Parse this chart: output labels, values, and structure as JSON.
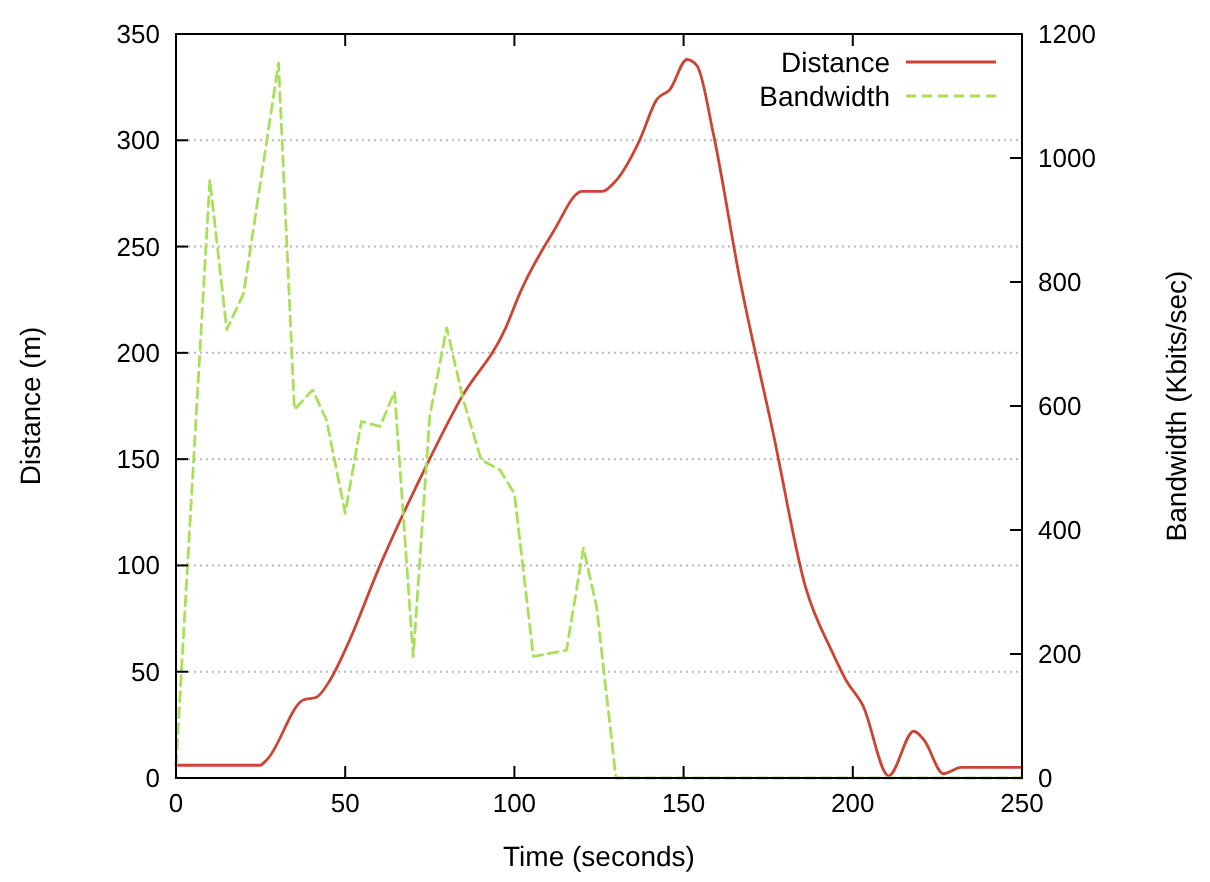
{
  "chart_data": {
    "type": "line",
    "xlabel": "Time (seconds)",
    "ylabel": "Distance (m)",
    "y2label": "Bandwidth (Kbits/sec)",
    "xlim": [
      0,
      250
    ],
    "xticks": [
      0,
      50,
      100,
      150,
      200,
      250
    ],
    "ylim": [
      0,
      350
    ],
    "yticks": [
      0,
      50,
      100,
      150,
      200,
      250,
      300,
      350
    ],
    "y2lim": [
      0,
      1200
    ],
    "y2ticks": [
      0,
      200,
      400,
      600,
      800,
      1000,
      1200
    ],
    "grid": "y",
    "legend": "top right",
    "series": [
      {
        "name": "Distance",
        "color": "#cc4433",
        "line_style": "solid",
        "x": [
          0,
          24.8,
          26.8,
          37.6,
          41.5,
          45.5,
          50.5,
          60.3,
          74,
          84,
          97.5,
          101.6,
          111.5,
          120,
          126,
          130,
          137,
          142,
          146,
          151,
          154,
          158.8,
          166.7,
          176.5,
          186,
          194,
          198,
          203,
          210.6,
          218,
          221,
          226.8,
          232,
          250
        ],
        "values": [
          6,
          6,
          8.5,
          36.7,
          38,
          46,
          62,
          100,
          147,
          178,
          212,
          228,
          257,
          276,
          276,
          281,
          300,
          319,
          324,
          338,
          335,
          303,
          234,
          162,
          90,
          59,
          46,
          34,
          1,
          22,
          18,
          2,
          5,
          5
        ]
      },
      {
        "name": "Bandwidth",
        "color": "#a8e05a",
        "line_style": "dashed",
        "axis": "y2",
        "x": [
          0,
          10,
          15,
          20,
          30.3,
          35,
          40.4,
          44.5,
          50,
          54.8,
          60.3,
          64.6,
          70.1,
          75,
          80,
          84.9,
          90.2,
          95.7,
          100,
          105.6,
          115.4,
          120.4,
          124.3,
          130,
          250
        ],
        "values": [
          20,
          965,
          723,
          782,
          1153,
          594,
          626,
          577,
          427,
          575,
          567,
          623,
          196,
          584,
          726,
          610,
          513,
          497,
          459,
          196,
          206,
          371,
          276,
          0,
          0
        ]
      }
    ]
  }
}
